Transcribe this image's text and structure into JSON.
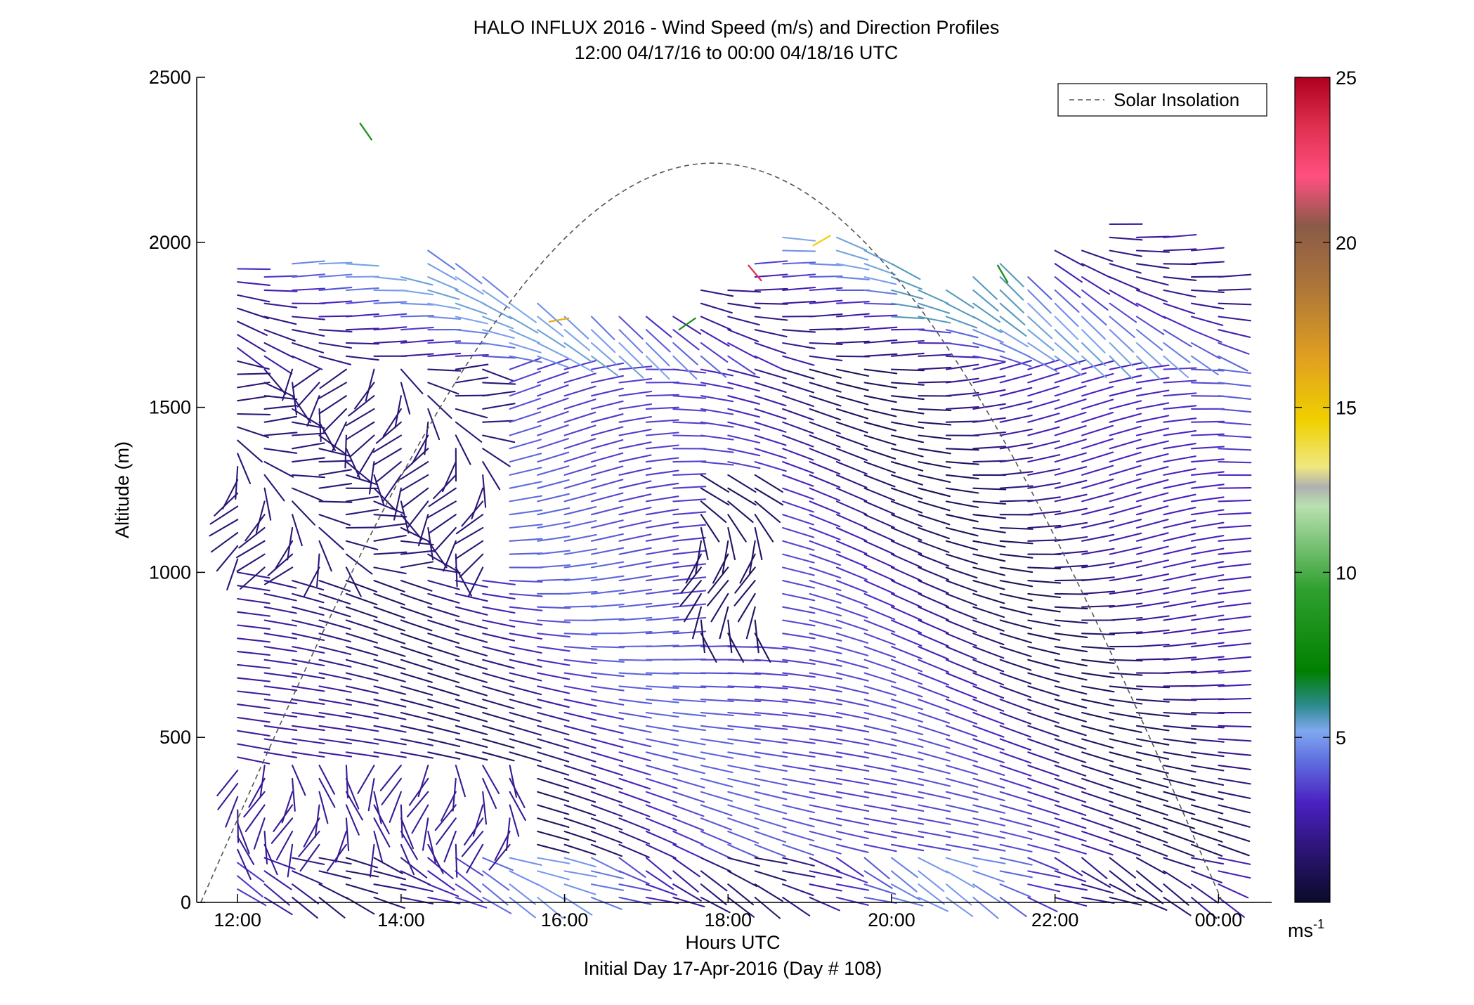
{
  "chart_data": {
    "type": "quiver",
    "title": "HALO INFLUX 2016 - Wind Speed (m/s) and Direction Profiles",
    "subtitle": "12:00 04/17/16 to 00:00 04/18/16  UTC",
    "xlabel": "Hours UTC",
    "xlabel2": "Initial Day 17-Apr-2016 (Day # 108)",
    "ylabel": "Altitude (m)",
    "xlim": [
      11.5,
      24.65
    ],
    "ylim": [
      0,
      2500
    ],
    "x_ticks": [
      12,
      14,
      16,
      18,
      20,
      22,
      24
    ],
    "x_tick_labels": [
      "12:00",
      "14:00",
      "16:00",
      "18:00",
      "20:00",
      "22:00",
      "00:00"
    ],
    "y_ticks": [
      0,
      500,
      1000,
      1500,
      2000,
      2500
    ],
    "y_tick_labels": [
      "0",
      "500",
      "1000",
      "1500",
      "2000",
      "2500"
    ],
    "grid": false,
    "legend": {
      "placement": "top-right",
      "entries": [
        {
          "label": "Solar Insolation",
          "style": "dashed",
          "color": "#555555"
        }
      ]
    },
    "colorbar": {
      "label_base": "ms",
      "label_exp": "-1",
      "range": [
        0,
        25
      ],
      "ticks": [
        5,
        10,
        15,
        20,
        25
      ],
      "tick_labels": [
        "5",
        "10",
        "15",
        "20",
        "25"
      ],
      "stops": [
        {
          "v": 0,
          "c": "#0a0a2a"
        },
        {
          "v": 1.5,
          "c": "#2a1470"
        },
        {
          "v": 3,
          "c": "#4a20c0"
        },
        {
          "v": 4.3,
          "c": "#6070e0"
        },
        {
          "v": 5.2,
          "c": "#80a8f0"
        },
        {
          "v": 6.0,
          "c": "#2a8a8a"
        },
        {
          "v": 7.0,
          "c": "#008000"
        },
        {
          "v": 9.5,
          "c": "#30a030"
        },
        {
          "v": 12.0,
          "c": "#b8e0b0"
        },
        {
          "v": 12.6,
          "c": "#b0b0b0"
        },
        {
          "v": 13.2,
          "c": "#f0e880"
        },
        {
          "v": 14.6,
          "c": "#f0d000"
        },
        {
          "v": 16.5,
          "c": "#e0a020"
        },
        {
          "v": 18.5,
          "c": "#b07838"
        },
        {
          "v": 20.5,
          "c": "#8a5a48"
        },
        {
          "v": 22.0,
          "c": "#ff5080"
        },
        {
          "v": 23.5,
          "c": "#e03050"
        },
        {
          "v": 25,
          "c": "#b00020"
        }
      ]
    },
    "solar_insolation": {
      "start_hour": 11.55,
      "end_hour": 24.05,
      "peak_hour": 17.82,
      "peak_altitude": 2240
    },
    "wind_profiles": {
      "profile_hours": [
        12,
        12.33,
        12.67,
        13,
        13.33,
        13.67,
        14,
        14.33,
        14.67,
        15,
        15.33,
        15.67,
        16,
        16.33,
        16.67,
        17,
        17.33,
        17.67,
        18,
        18.33,
        18.67,
        19,
        19.33,
        19.67,
        20,
        20.33,
        20.67,
        21,
        21.33,
        21.67,
        22,
        22.33,
        22.67,
        23,
        23.33,
        23.67,
        24
      ],
      "altitude_spacing": 40,
      "profiles": [
        {
          "hour": 12.0,
          "top": 1930
        },
        {
          "hour": 12.33,
          "top": 1900
        },
        {
          "hour": 12.67,
          "top": 1955
        },
        {
          "hour": 13.0,
          "top": 1950
        },
        {
          "hour": 13.33,
          "top": 1955
        },
        {
          "hour": 13.67,
          "top": 1930
        },
        {
          "hour": 14.0,
          "top": 1920
        },
        {
          "hour": 14.33,
          "top": 1980
        },
        {
          "hour": 14.67,
          "top": 1960
        },
        {
          "hour": 15.0,
          "top": 1925
        },
        {
          "hour": 15.33,
          "top": 1840
        },
        {
          "hour": 15.67,
          "top": 1820
        },
        {
          "hour": 16.0,
          "top": 1780
        },
        {
          "hour": 16.33,
          "top": 1790
        },
        {
          "hour": 16.67,
          "top": 1780
        },
        {
          "hour": 17.0,
          "top": 1790
        },
        {
          "hour": 17.33,
          "top": 1780
        },
        {
          "hour": 17.67,
          "top": 1860
        },
        {
          "hour": 18.0,
          "top": 1880
        },
        {
          "hour": 18.33,
          "top": 1940
        },
        {
          "hour": 18.67,
          "top": 2030
        },
        {
          "hour": 19.0,
          "top": 1950
        },
        {
          "hour": 19.33,
          "top": 2030
        },
        {
          "hour": 19.67,
          "top": 1990
        },
        {
          "hour": 20.0,
          "top": 1950
        },
        {
          "hour": 20.33,
          "top": 1880
        },
        {
          "hour": 20.67,
          "top": 1870
        },
        {
          "hour": 21.0,
          "top": 1900
        },
        {
          "hour": 21.33,
          "top": 1940
        },
        {
          "hour": 21.67,
          "top": 1910
        },
        {
          "hour": 22.0,
          "top": 2000
        },
        {
          "hour": 22.33,
          "top": 2000
        },
        {
          "hour": 22.67,
          "top": 2060
        },
        {
          "hour": 23.0,
          "top": 2040
        },
        {
          "hour": 23.33,
          "top": 2030
        },
        {
          "hour": 23.67,
          "top": 1990
        },
        {
          "hour": 24.0,
          "top": 1900
        }
      ],
      "isolated_vectors": [
        {
          "hour": 13.5,
          "alt": 2360,
          "speed": 8.5,
          "dir_deg": 145
        },
        {
          "hour": 18.25,
          "alt": 1930,
          "speed": 23.5,
          "dir_deg": 140
        },
        {
          "hour": 19.25,
          "alt": 2020,
          "speed": 14.5,
          "dir_deg": 240
        },
        {
          "hour": 16.05,
          "alt": 1770,
          "speed": 16.0,
          "dir_deg": 260
        },
        {
          "hour": 17.6,
          "alt": 1770,
          "speed": 8.5,
          "dir_deg": 235
        },
        {
          "hour": 21.3,
          "alt": 1930,
          "speed": 8.0,
          "dir_deg": 150
        }
      ]
    }
  }
}
